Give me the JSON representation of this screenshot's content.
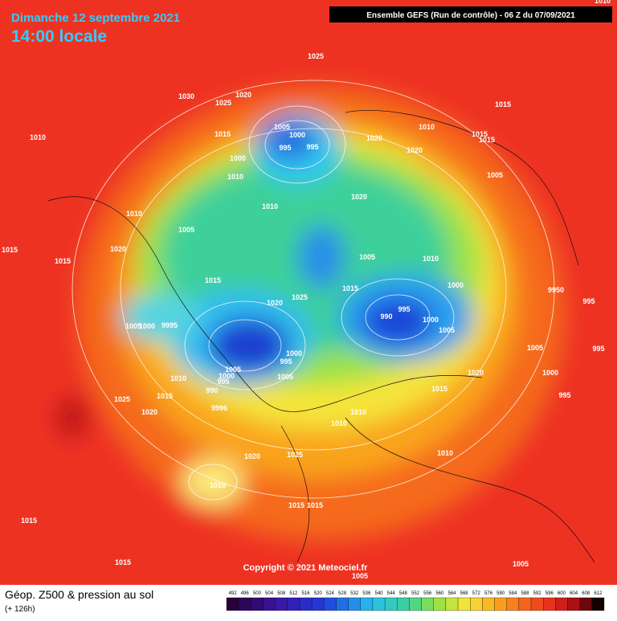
{
  "header": {
    "date": "Dimanche 12 septembre 2021",
    "time": "14:00 locale",
    "run": "Ensemble GEFS  (Run de contrôle)  - 06 Z du 07/09/2021"
  },
  "copyright": "Copyright © 2021 Meteociel.fr",
  "legend": {
    "title": "Géop. Z500 & pression au sol",
    "lead": "(+ 126h)",
    "labels": [
      492,
      496,
      500,
      504,
      508,
      512,
      516,
      520,
      524,
      528,
      532,
      536,
      540,
      544,
      548,
      552,
      556,
      560,
      564,
      568,
      572,
      576,
      580,
      584,
      588,
      592,
      596,
      600,
      604,
      608,
      612
    ]
  },
  "isobar_labels": [
    "1010",
    "1025",
    "1030",
    "1025",
    "1020",
    "1010",
    "1005",
    "1000",
    "995",
    "995",
    "1015",
    "1000",
    "1010",
    "1020",
    "1010",
    "1020",
    "1015",
    "1015",
    "1015",
    "1005",
    "1010",
    "1010",
    "1020",
    "1005",
    "1020",
    "1015",
    "1015",
    "1005",
    "1010",
    "1015",
    "1015",
    "1025",
    "1020",
    "1000",
    "995",
    "990",
    "1000",
    "1005",
    "9950",
    "995",
    "9995",
    "1005",
    "1000",
    "1005",
    "995",
    "1000",
    "995",
    "1005",
    "1000",
    "995",
    "1005",
    "1010",
    "1020",
    "1000",
    "1015",
    "990",
    "1015",
    "1025",
    "995",
    "9996",
    "1020",
    "1010",
    "1010",
    "1020",
    "1025",
    "1010",
    "1010",
    "1015",
    "1015",
    "1015",
    "1015",
    "1005",
    "1005"
  ]
}
